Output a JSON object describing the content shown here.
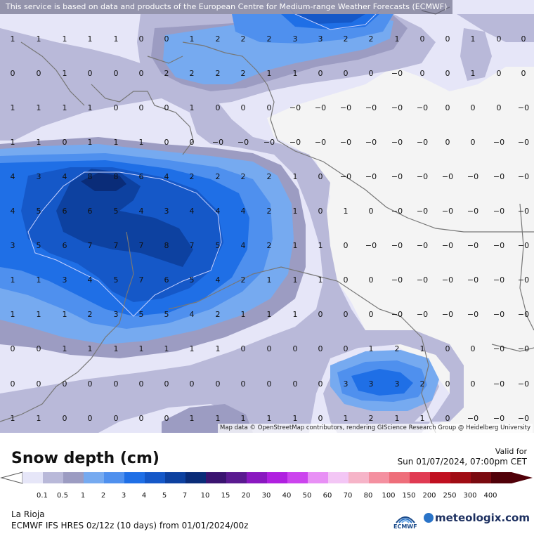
{
  "banner": "This service is based on data and products of the European Centre for Medium-range Weather Forecasts (ECMWF)",
  "attribution": "Map data © OpenStreetMap contributors, rendering GIScience Research Group @ Heidelberg University",
  "title": "Snow depth (cm)",
  "valid_label": "Valid for",
  "valid_time": "Sun 01/07/2024, 07:00pm CET",
  "location": "La Rioja",
  "model": "ECMWF IFS HRES 0z/12z (10 days) from 01/01/2024/00z",
  "ecmwf_logo_text": "ECMWF",
  "brand": "meteologix.com",
  "legend": {
    "labels": [
      "0.1",
      "0.5",
      "1",
      "2",
      "3",
      "4",
      "5",
      "7",
      "10",
      "15",
      "20",
      "30",
      "40",
      "50",
      "60",
      "70",
      "80",
      "100",
      "150",
      "200",
      "250",
      "300",
      "400"
    ],
    "colors": [
      "#e6e6f8",
      "#b9b9d9",
      "#9c9cc2",
      "#76aaf0",
      "#4f90ee",
      "#1f6fe6",
      "#1558c8",
      "#0d41a0",
      "#0a2c78",
      "#3a1470",
      "#5a1a90",
      "#8a18c0",
      "#b020e0",
      "#cc44ee",
      "#e890f5",
      "#f3c6f5",
      "#f6b4c8",
      "#f490a0",
      "#ee6e7a",
      "#e03a52",
      "#c01020",
      "#a00c14",
      "#7a0a10",
      "#500008"
    ]
  },
  "grid": {
    "cols_x": [
      18,
      55,
      92,
      128,
      165,
      201,
      237,
      273,
      310,
      346,
      383,
      420,
      456,
      492,
      528,
      565,
      601,
      637,
      673,
      710,
      745
    ],
    "rows": [
      {
        "y": 55,
        "values": [
          "1",
          "1",
          "1",
          "1",
          "1",
          "0",
          "0",
          "1",
          "2",
          "2",
          "2",
          "3",
          "3",
          "2",
          "2",
          "1",
          "0",
          "0",
          "1",
          "0",
          "0"
        ]
      },
      {
        "y": 104,
        "values": [
          "0",
          "0",
          "1",
          "0",
          "0",
          "0",
          "2",
          "2",
          "2",
          "2",
          "1",
          "1",
          "0",
          "0",
          "0",
          "−0",
          "0",
          "0",
          "1",
          "0",
          "0"
        ]
      },
      {
        "y": 153,
        "values": [
          "1",
          "1",
          "1",
          "1",
          "0",
          "0",
          "0",
          "1",
          "0",
          "0",
          "0",
          "−0",
          "−0",
          "−0",
          "−0",
          "−0",
          "−0",
          "0",
          "0",
          "0",
          "−0"
        ]
      },
      {
        "y": 202,
        "values": [
          "1",
          "1",
          "0",
          "1",
          "1",
          "1",
          "0",
          "0",
          "−0",
          "−0",
          "−0",
          "−0",
          "−0",
          "−0",
          "−0",
          "−0",
          "−0",
          "0",
          "0",
          "−0",
          "−0"
        ]
      },
      {
        "y": 251,
        "values": [
          "4",
          "3",
          "4",
          "8",
          "8",
          "6",
          "4",
          "2",
          "2",
          "2",
          "2",
          "1",
          "0",
          "−0",
          "−0",
          "−0",
          "−0",
          "−0",
          "−0",
          "−0",
          "−0"
        ]
      },
      {
        "y": 300,
        "values": [
          "4",
          "5",
          "6",
          "6",
          "5",
          "4",
          "3",
          "4",
          "4",
          "4",
          "2",
          "1",
          "0",
          "1",
          "0",
          "−0",
          "−0",
          "−0",
          "−0",
          "−0",
          "−0"
        ]
      },
      {
        "y": 349,
        "values": [
          "3",
          "5",
          "6",
          "7",
          "7",
          "7",
          "8",
          "7",
          "5",
          "4",
          "2",
          "1",
          "1",
          "0",
          "−0",
          "−0",
          "−0",
          "−0",
          "−0",
          "−0",
          "−0"
        ]
      },
      {
        "y": 398,
        "values": [
          "1",
          "1",
          "3",
          "4",
          "5",
          "7",
          "6",
          "5",
          "4",
          "2",
          "1",
          "1",
          "1",
          "0",
          "0",
          "−0",
          "−0",
          "−0",
          "−0",
          "−0",
          "−0"
        ]
      },
      {
        "y": 447,
        "values": [
          "1",
          "1",
          "1",
          "2",
          "3",
          "5",
          "5",
          "4",
          "2",
          "1",
          "1",
          "1",
          "0",
          "0",
          "0",
          "−0",
          "−0",
          "−0",
          "−0",
          "−0",
          "−0"
        ]
      },
      {
        "y": 496,
        "values": [
          "0",
          "0",
          "1",
          "1",
          "1",
          "1",
          "1",
          "1",
          "1",
          "0",
          "0",
          "0",
          "0",
          "0",
          "1",
          "2",
          "1",
          "0",
          "0",
          "−0",
          "−0"
        ]
      },
      {
        "y": 546,
        "values": [
          "0",
          "0",
          "0",
          "0",
          "0",
          "0",
          "0",
          "0",
          "0",
          "0",
          "0",
          "0",
          "0",
          "3",
          "3",
          "3",
          "2",
          "0",
          "0",
          "−0",
          "−0"
        ]
      },
      {
        "y": 595,
        "values": [
          "1",
          "1",
          "0",
          "0",
          "0",
          "0",
          "0",
          "1",
          "1",
          "1",
          "1",
          "1",
          "0",
          "1",
          "2",
          "1",
          "1",
          "0",
          "−0",
          "−0",
          "−0"
        ]
      }
    ]
  }
}
